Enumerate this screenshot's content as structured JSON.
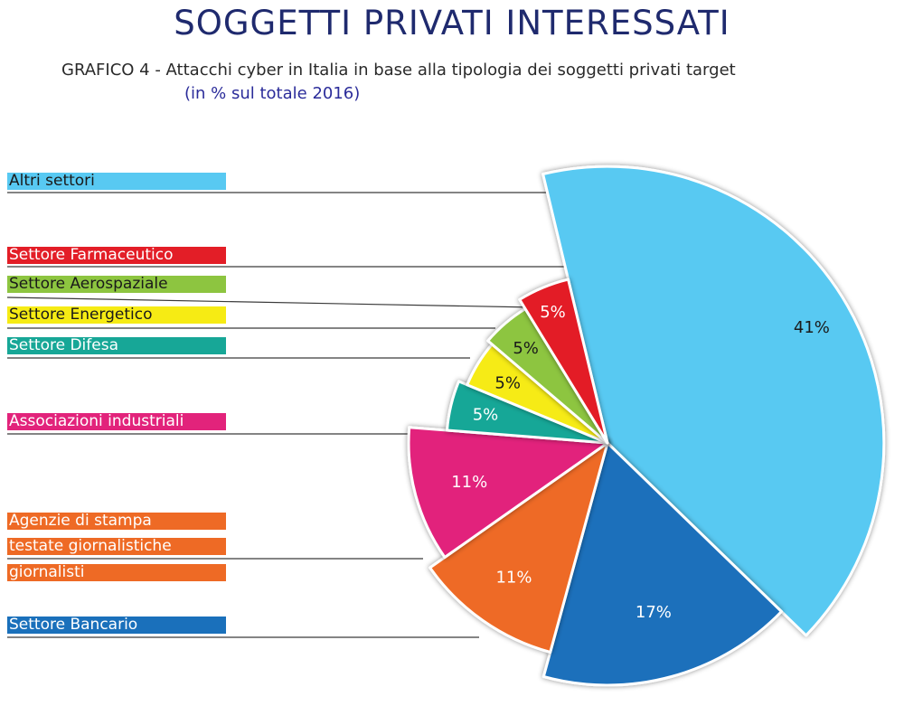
{
  "title": "SOGGETTI PRIVATI INTERESSATI",
  "subtitle": "GRAFICO 4 - Attacchi cyber in Italia in base alla tipologia dei soggetti privati target",
  "subtitle2": "(in % sul totale 2016)",
  "chart_data": {
    "type": "pie",
    "slices": [
      {
        "label": "Altri settori",
        "value": 41,
        "value_label": "41%",
        "color": "#58c9f2",
        "text_color": "#1a1a1a",
        "label_text_color": "#1a1a1a"
      },
      {
        "label": "Settore Bancario",
        "value": 17,
        "value_label": "17%",
        "color": "#1a70bb",
        "text_color": "#ffffff",
        "label_text_color": "#ffffff"
      },
      {
        "label": "Agenzie di stampa / testate giornalistiche / giornalisti",
        "value": 11,
        "value_label": "11%",
        "color": "#ee6a25",
        "text_color": "#ffffff",
        "label_text_color": "#ffffff"
      },
      {
        "label": "Associazioni industriali",
        "value": 11,
        "value_label": "11%",
        "color": "#e2237b",
        "text_color": "#ffffff",
        "label_text_color": "#ffffff"
      },
      {
        "label": "Settore Difesa",
        "value": 5,
        "value_label": "5%",
        "color": "#17a797",
        "text_color": "#ffffff",
        "label_text_color": "#ffffff"
      },
      {
        "label": "Settore Energetico",
        "value": 5,
        "value_label": "5%",
        "color": "#f6eb14",
        "text_color": "#1a1a1a",
        "label_text_color": "#1a1a1a"
      },
      {
        "label": "Settore Aerospaziale",
        "value": 5,
        "value_label": "5%",
        "color": "#8dc540",
        "text_color": "#1a1a1a",
        "label_text_color": "#1a1a1a"
      },
      {
        "label": "Settore Farmaceutico",
        "value": 5,
        "value_label": "5%",
        "color": "#e31e27",
        "text_color": "#ffffff",
        "label_text_color": "#ffffff"
      }
    ],
    "legend_labels": [
      {
        "text": "Altri settori",
        "slice": 0
      },
      {
        "text": "Settore Farmaceutico",
        "slice": 7
      },
      {
        "text": "Settore Aerospaziale",
        "slice": 6
      },
      {
        "text": "Settore Energetico",
        "slice": 5
      },
      {
        "text": "Settore Difesa",
        "slice": 4
      },
      {
        "text": "Associazioni industriali",
        "slice": 3
      },
      {
        "text": "Agenzie di stampa",
        "slice": 2
      },
      {
        "text": "testate giornalistiche",
        "slice": 2
      },
      {
        "text": "giornalisti",
        "slice": 2
      },
      {
        "text": "Settore Bancario",
        "slice": 1
      }
    ],
    "legend_placement": "left"
  }
}
